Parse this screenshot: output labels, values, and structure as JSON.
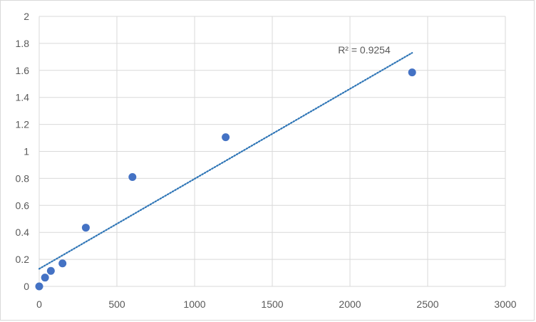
{
  "chart_data": {
    "type": "scatter",
    "title": "",
    "xlabel": "",
    "ylabel": "",
    "xlim": [
      0,
      3000
    ],
    "ylim": [
      0,
      2
    ],
    "x_ticks": [
      "0",
      "500",
      "1000",
      "1500",
      "2000",
      "2500",
      "3000"
    ],
    "y_ticks": [
      "0",
      "0.2",
      "0.4",
      "0.6",
      "0.8",
      "1",
      "1.2",
      "1.4",
      "1.6",
      "1.8",
      "2"
    ],
    "grid": true,
    "legend": "none",
    "series": [
      {
        "points": [
          {
            "x": 0,
            "y": 0.0
          },
          {
            "x": 37.5,
            "y": 0.065
          },
          {
            "x": 75,
            "y": 0.115
          },
          {
            "x": 150,
            "y": 0.17
          },
          {
            "x": 300,
            "y": 0.435
          },
          {
            "x": 600,
            "y": 0.81
          },
          {
            "x": 1200,
            "y": 1.105
          },
          {
            "x": 2400,
            "y": 1.585
          }
        ],
        "color": "#4472c4"
      }
    ],
    "trendline": {
      "type": "linear",
      "color": "#2e75b6",
      "style": "dotted",
      "x_range": [
        0,
        2400
      ],
      "y_start": 0.13,
      "y_end": 1.73,
      "label": "R² = 0.9254"
    }
  }
}
